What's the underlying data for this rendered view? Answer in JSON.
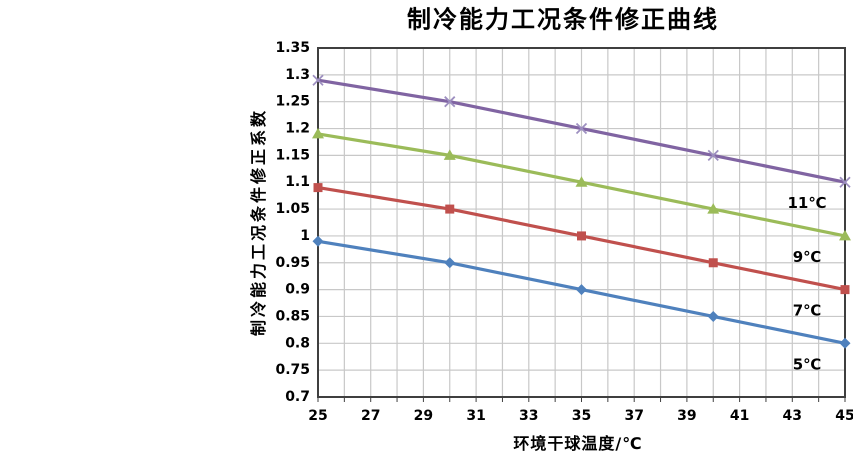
{
  "chart_data": {
    "type": "line",
    "title": "制冷能力工况条件修正曲线",
    "xlabel": "环境干球温度/℃",
    "ylabel": "制冷能力工况条件修正系数",
    "xlim": [
      25,
      45
    ],
    "ylim": [
      0.7,
      1.35
    ],
    "grid": true,
    "x_gridline_step": 1,
    "y_gridline_step": 0.05,
    "x_tick_values": [
      25,
      27,
      29,
      31,
      33,
      35,
      37,
      39,
      41,
      43,
      45
    ],
    "x_tick_labels": [
      "25",
      "27",
      "29",
      "31",
      "33",
      "35",
      "37",
      "39",
      "41",
      "43",
      "45"
    ],
    "y_tick_values": [
      1.35,
      1.3,
      1.25,
      1.2,
      1.15,
      1.1,
      1.05,
      1,
      0.95,
      0.9,
      0.85,
      0.8,
      0.75,
      0.7
    ],
    "y_tick_labels": [
      "1.35",
      "1.3",
      "1.25",
      "1.2",
      "1.15",
      "1.1",
      "1.05",
      "1",
      "0.95",
      "0.9",
      "0.85",
      "0.8",
      "0.75",
      "0.7"
    ],
    "x": [
      25,
      30,
      35,
      40,
      45
    ],
    "series": [
      {
        "name": "11℃",
        "marker": "x",
        "color": "#8064A2",
        "marker_color": "#9D8FC0",
        "values": [
          1.29,
          1.25,
          1.2,
          1.15,
          1.1
        ]
      },
      {
        "name": "9℃",
        "marker": "triangle",
        "color": "#9BBB59",
        "marker_color": "#9BBB59",
        "values": [
          1.19,
          1.15,
          1.1,
          1.05,
          1.0
        ]
      },
      {
        "name": "7℃",
        "marker": "square",
        "color": "#C0504D",
        "marker_color": "#C0504D",
        "values": [
          1.09,
          1.05,
          1.0,
          0.95,
          0.9
        ]
      },
      {
        "name": "5℃",
        "marker": "diamond",
        "color": "#4F81BD",
        "marker_color": "#4F81BD",
        "values": [
          0.99,
          0.95,
          0.9,
          0.85,
          0.8
        ]
      }
    ],
    "legend_position": "inline-labels-below-line-ends",
    "colors": {
      "background": "#FFFFFF",
      "gridline": "#C8C8C8",
      "plot_border": "#3F3F3F",
      "text": "#000000"
    }
  }
}
